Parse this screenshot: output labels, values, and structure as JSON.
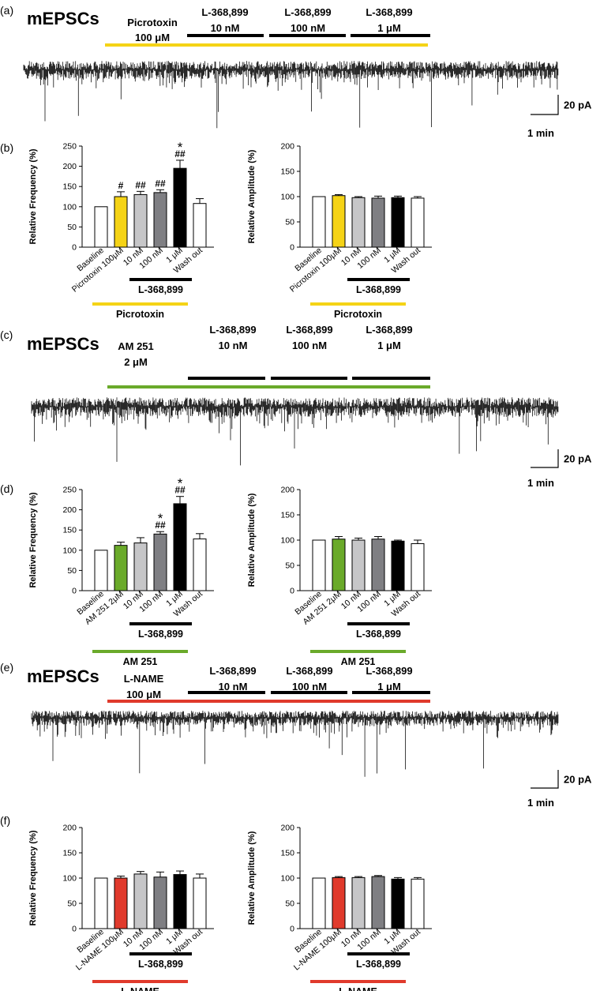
{
  "panels": [
    {
      "letter": "(a)",
      "title": "mEPSCs",
      "pre_drug": [
        "Picrotoxin",
        "100 μM"
      ],
      "pre_color": "#f5d316",
      "agonist": [
        [
          "L-368,899",
          "10 nM"
        ],
        [
          "L-368,899",
          "100 nM"
        ],
        [
          "L-368,899",
          "1 μM"
        ]
      ],
      "scale_y": "20 pA",
      "scale_x": "1 min"
    },
    {
      "letter": "(c)",
      "title": "mEPSCs",
      "pre_drug": [
        "AM 251",
        "2 μM"
      ],
      "pre_color": "#6aaa2a",
      "agonist": [
        [
          "L-368,899",
          "10 nM"
        ],
        [
          "L-368,899",
          "100 nM"
        ],
        [
          "L-368,899",
          "1 μM"
        ]
      ],
      "scale_y": "20 pA",
      "scale_x": "1 min"
    },
    {
      "letter": "(e)",
      "title": "mEPSCs",
      "pre_drug": [
        "L-NAME",
        "100 μM"
      ],
      "pre_color": "#e03a2c",
      "agonist": [
        [
          "L-368,899",
          "10 nM"
        ],
        [
          "L-368,899",
          "100 nM"
        ],
        [
          "L-368,899",
          "1 μM"
        ]
      ],
      "scale_y": "20 pA",
      "scale_x": "1 min"
    }
  ],
  "bar_panels": [
    "(b)",
    "(d)",
    "(f)"
  ],
  "chart_data": [
    {
      "type": "bar",
      "panel": "(b)",
      "ylabel": "Relative Frequency (%)",
      "ylim": [
        0,
        250
      ],
      "yticks": [
        0,
        50,
        100,
        150,
        200,
        250
      ],
      "categories": [
        "Baseline",
        "Picrotoxin 100μM",
        "10 nM",
        "100 nM",
        "1 μM",
        "Wash out"
      ],
      "values": [
        100,
        125,
        130,
        135,
        195,
        108
      ],
      "errors": [
        0,
        12,
        8,
        7,
        20,
        12
      ],
      "colors": [
        "#ffffff",
        "#f5d316",
        "#c6c6c8",
        "#7f7f83",
        "#000000",
        "#ffffff"
      ],
      "annotations": [
        {
          "index": 1,
          "lines": [
            "#"
          ]
        },
        {
          "index": 2,
          "lines": [
            "##"
          ]
        },
        {
          "index": 3,
          "lines": [
            "##"
          ]
        },
        {
          "index": 4,
          "lines": [
            "*",
            "##"
          ]
        }
      ],
      "group_labels": [
        "L-368,899",
        "Picrotoxin"
      ],
      "group_colors": [
        "#000000",
        "#f5d316"
      ]
    },
    {
      "type": "bar",
      "panel": "(b)",
      "ylabel": "Relative Amplitude (%)",
      "ylim": [
        0,
        200
      ],
      "yticks": [
        0,
        50,
        100,
        150,
        200
      ],
      "categories": [
        "Baseline",
        "Picrotoxin 100μM",
        "10 nM",
        "100 nM",
        "1 μM",
        "Wash out"
      ],
      "values": [
        100,
        102,
        98,
        97,
        98,
        97
      ],
      "errors": [
        0,
        2,
        2,
        4,
        3,
        3
      ],
      "colors": [
        "#ffffff",
        "#f5d316",
        "#c6c6c8",
        "#7f7f83",
        "#000000",
        "#ffffff"
      ],
      "annotations": [],
      "group_labels": [
        "L-368,899",
        "Picrotoxin"
      ],
      "group_colors": [
        "#000000",
        "#f5d316"
      ]
    },
    {
      "type": "bar",
      "panel": "(d)",
      "ylabel": "Relative Frequency (%)",
      "ylim": [
        0,
        250
      ],
      "yticks": [
        0,
        50,
        100,
        150,
        200,
        250
      ],
      "categories": [
        "Baseline",
        "AM 251 2μM",
        "10 nM",
        "100 nM",
        "1 μM",
        "Wash out"
      ],
      "values": [
        100,
        112,
        118,
        140,
        215,
        128
      ],
      "errors": [
        0,
        8,
        13,
        6,
        18,
        13
      ],
      "colors": [
        "#ffffff",
        "#6aaa2a",
        "#c6c6c8",
        "#7f7f83",
        "#000000",
        "#ffffff"
      ],
      "annotations": [
        {
          "index": 3,
          "lines": [
            "*",
            "##"
          ]
        },
        {
          "index": 4,
          "lines": [
            "*",
            "##"
          ]
        }
      ],
      "group_labels": [
        "L-368,899",
        "AM 251"
      ],
      "group_colors": [
        "#000000",
        "#6aaa2a"
      ]
    },
    {
      "type": "bar",
      "panel": "(d)",
      "ylabel": "Relative Amplitude (%)",
      "ylim": [
        0,
        200
      ],
      "yticks": [
        0,
        50,
        100,
        150,
        200
      ],
      "categories": [
        "Baseline",
        "AM 251 2μM",
        "10 nM",
        "100 nM",
        "1 μM",
        "Wash out"
      ],
      "values": [
        100,
        102,
        100,
        102,
        98,
        93
      ],
      "errors": [
        0,
        5,
        4,
        5,
        2,
        7
      ],
      "colors": [
        "#ffffff",
        "#6aaa2a",
        "#c6c6c8",
        "#7f7f83",
        "#000000",
        "#ffffff"
      ],
      "annotations": [],
      "group_labels": [
        "L-368,899",
        "AM 251"
      ],
      "group_colors": [
        "#000000",
        "#6aaa2a"
      ]
    },
    {
      "type": "bar",
      "panel": "(f)",
      "ylabel": "Relative Frequency (%)",
      "ylim": [
        0,
        200
      ],
      "yticks": [
        0,
        50,
        100,
        150,
        200
      ],
      "categories": [
        "Baseline",
        "L-NAME 100μM",
        "10 nM",
        "100 nM",
        "1 μM",
        "Wash out"
      ],
      "values": [
        100,
        100,
        108,
        102,
        107,
        100
      ],
      "errors": [
        0,
        4,
        5,
        10,
        7,
        8
      ],
      "colors": [
        "#ffffff",
        "#e03a2c",
        "#c6c6c8",
        "#7f7f83",
        "#000000",
        "#ffffff"
      ],
      "annotations": [],
      "group_labels": [
        "L-368,899",
        "L-NAME"
      ],
      "group_colors": [
        "#000000",
        "#e03a2c"
      ]
    },
    {
      "type": "bar",
      "panel": "(f)",
      "ylabel": "Relative Amplitude (%)",
      "ylim": [
        0,
        200
      ],
      "yticks": [
        0,
        50,
        100,
        150,
        200
      ],
      "categories": [
        "Baseline",
        "L-NAME 100μM",
        "10 nM",
        "100 nM",
        "1 μM",
        "Wash out"
      ],
      "values": [
        100,
        101,
        101,
        103,
        98,
        98
      ],
      "errors": [
        0,
        2,
        2,
        2,
        3,
        3
      ],
      "colors": [
        "#ffffff",
        "#e03a2c",
        "#c6c6c8",
        "#7f7f83",
        "#000000",
        "#ffffff"
      ],
      "annotations": [],
      "group_labels": [
        "L-368,899",
        "L-NAME"
      ],
      "group_colors": [
        "#000000",
        "#e03a2c"
      ]
    }
  ]
}
